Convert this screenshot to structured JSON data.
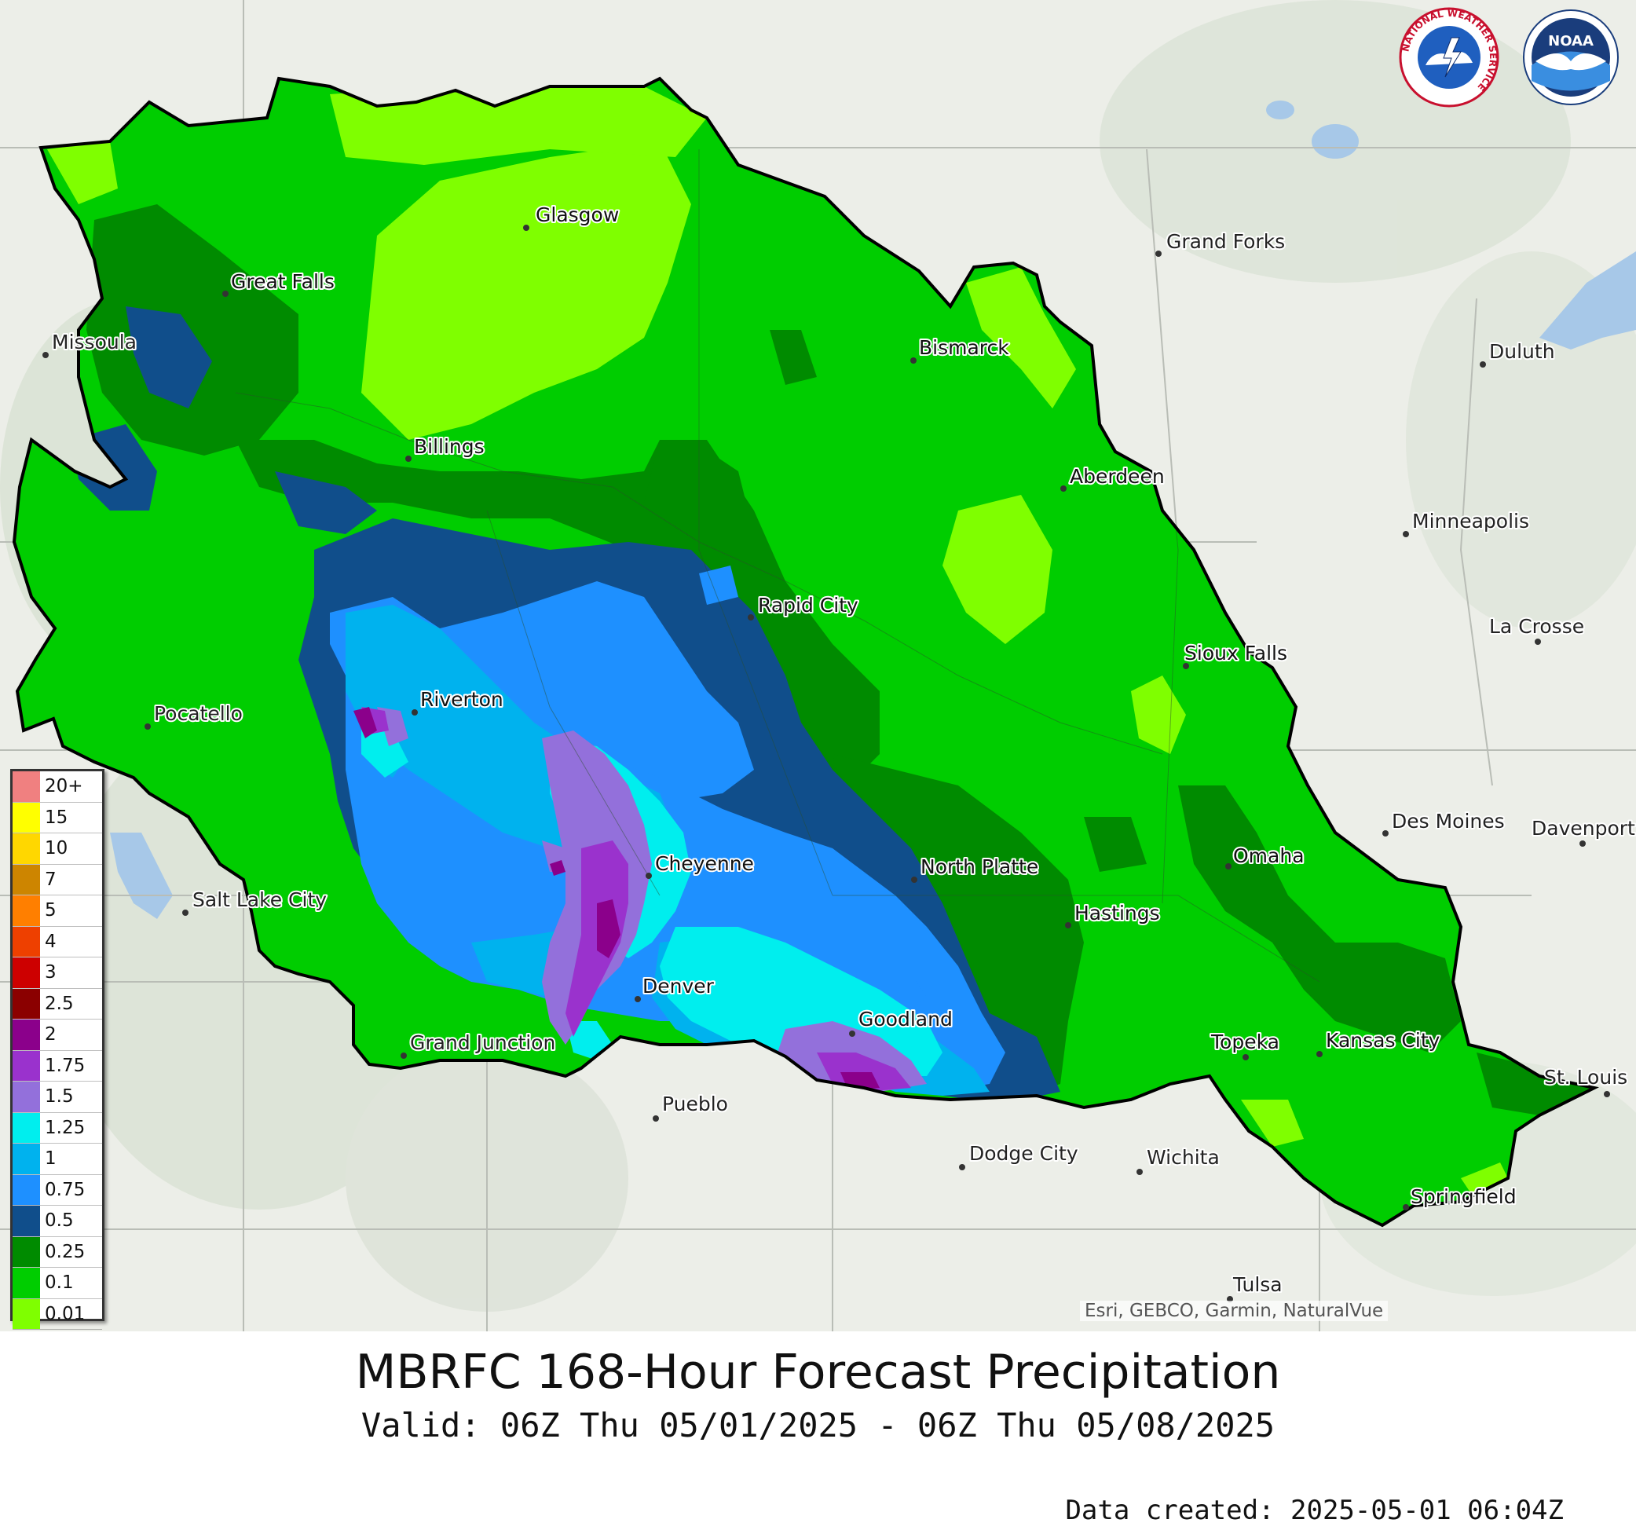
{
  "title": "MBRFC 168-Hour Forecast Precipitation",
  "subtitle": "Valid: 06Z Thu 05/01/2025 - 06Z Thu 05/08/2025",
  "created": "Data created: 2025-05-01 06:04Z",
  "attribution": "Esri, GEBCO, Garmin, NaturalVue",
  "logos": {
    "nws_ring_text": "NATIONAL WEATHER SERVICE",
    "noaa_text": "NOAA"
  },
  "legend": {
    "items": [
      {
        "label": "20+",
        "color": "#f08080"
      },
      {
        "label": "15",
        "color": "#ffff00"
      },
      {
        "label": "10",
        "color": "#ffd700"
      },
      {
        "label": "7",
        "color": "#cd8500"
      },
      {
        "label": "5",
        "color": "#ff7f00"
      },
      {
        "label": "4",
        "color": "#ee4000"
      },
      {
        "label": "3",
        "color": "#cd0000"
      },
      {
        "label": "2.5",
        "color": "#8b0000"
      },
      {
        "label": "2",
        "color": "#8b008b"
      },
      {
        "label": "1.75",
        "color": "#9a32cd"
      },
      {
        "label": "1.5",
        "color": "#9370db"
      },
      {
        "label": "1.25",
        "color": "#00eeee"
      },
      {
        "label": "1",
        "color": "#00b2ee"
      },
      {
        "label": "0.75",
        "color": "#1e90ff"
      },
      {
        "label": "0.5",
        "color": "#104e8b"
      },
      {
        "label": "0.25",
        "color": "#008b00"
      },
      {
        "label": "0.1",
        "color": "#00cd00"
      },
      {
        "label": "0.01",
        "color": "#7fff00"
      }
    ]
  },
  "cities": {
    "glasgow": "Glasgow",
    "grand_forks": "Grand Forks",
    "great_falls": "Great Falls",
    "missoula": "Missoula",
    "bismarck": "Bismarck",
    "duluth": "Duluth",
    "billings": "Billings",
    "aberdeen": "Aberdeen",
    "minneapolis": "Minneapolis",
    "rapid_city": "Rapid City",
    "la_crosse": "La Crosse",
    "sioux_falls": "Sioux Falls",
    "riverton": "Riverton",
    "pocatello": "Pocatello",
    "des_moines": "Des Moines",
    "davenport": "Davenport",
    "omaha": "Omaha",
    "cheyenne": "Cheyenne",
    "north_platte": "North Platte",
    "salt_lake_city": "Salt Lake City",
    "hastings": "Hastings",
    "denver": "Denver",
    "goodland": "Goodland",
    "grand_junction": "Grand Junction",
    "topeka": "Topeka",
    "kansas_city": "Kansas City",
    "st_louis": "St. Louis",
    "pueblo": "Pueblo",
    "dodge_city": "Dodge City",
    "wichita": "Wichita",
    "springfield": "Springfield",
    "tulsa": "Tulsa"
  }
}
